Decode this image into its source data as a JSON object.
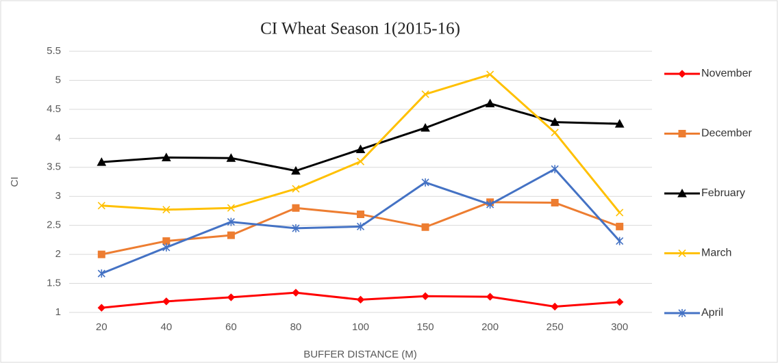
{
  "chart_data": {
    "type": "line",
    "title": "CI  Wheat Season 1(2015-16)",
    "x_label": "BUFFER DISTANCE (M)",
    "y_label": "CI",
    "categories": [
      "20",
      "40",
      "60",
      "80",
      "100",
      "150",
      "200",
      "250",
      "300"
    ],
    "series": [
      {
        "name": "November",
        "color": "#ff0000",
        "marker": "diamond",
        "values": [
          1.08,
          1.19,
          1.26,
          1.34,
          1.22,
          1.28,
          1.27,
          1.1,
          1.18
        ]
      },
      {
        "name": "December",
        "color": "#ed7d31",
        "marker": "square",
        "values": [
          2.0,
          2.23,
          2.33,
          2.8,
          2.69,
          2.47,
          2.9,
          2.89,
          2.48
        ]
      },
      {
        "name": "February",
        "color": "#000000",
        "marker": "triangle",
        "values": [
          3.59,
          3.67,
          3.66,
          3.44,
          3.81,
          4.18,
          4.6,
          4.28,
          4.25
        ]
      },
      {
        "name": "March",
        "color": "#ffc000",
        "marker": "x",
        "values": [
          2.84,
          2.77,
          2.8,
          3.13,
          3.6,
          4.76,
          5.1,
          4.1,
          2.72
        ]
      },
      {
        "name": "April",
        "color": "#4472c4",
        "marker": "asterisk",
        "values": [
          1.67,
          2.12,
          2.56,
          2.45,
          2.48,
          3.24,
          2.86,
          3.47,
          2.23
        ]
      }
    ],
    "ylim": [
      1,
      5.5
    ],
    "yticks": [
      1,
      1.5,
      2,
      2.5,
      3,
      3.5,
      4,
      4.5,
      5,
      5.5
    ],
    "grid": true,
    "legend": "right"
  }
}
